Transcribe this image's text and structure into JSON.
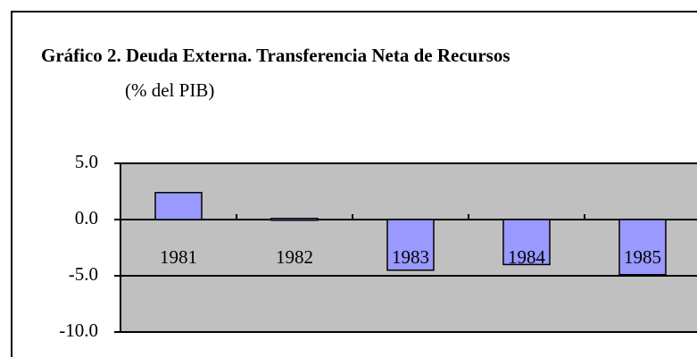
{
  "chart_data": {
    "type": "bar",
    "title": "Gráfico 2. Deuda Externa. Transferencia Neta de Recursos",
    "subtitle": "(% del PIB)",
    "categories": [
      "1981",
      "1982",
      "1983",
      "1984",
      "1985"
    ],
    "values": [
      2.4,
      0.1,
      -4.5,
      -4.0,
      -4.9
    ],
    "color": "#9999ff",
    "ylim": [
      -10,
      5
    ],
    "yticks": [
      {
        "value": 5,
        "label": "5.0"
      },
      {
        "value": 0,
        "label": "0.0"
      },
      {
        "value": -5,
        "label": "-5.0"
      },
      {
        "value": -10,
        "label": "-10.0"
      }
    ],
    "grid": true
  }
}
